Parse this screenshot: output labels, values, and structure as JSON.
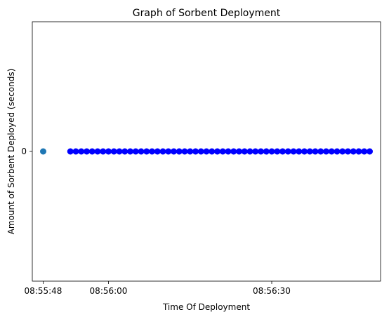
{
  "chart_data": {
    "type": "scatter",
    "title": "Graph of Sorbent Deployment",
    "xlabel": "Time Of Deployment",
    "ylabel": "Amount of Sorbent Deployed (seconds)",
    "x_axis_kind": "time",
    "xlim": [
      "08:55:46",
      "08:56:50"
    ],
    "ylim": [
      -0.055,
      0.055
    ],
    "x_ticks": [
      "08:55:48",
      "08:56:00",
      "08:56:30"
    ],
    "y_ticks": [
      0
    ],
    "y_tick_labels": [
      "0"
    ],
    "grid": false,
    "series": [
      {
        "color": "#1f77b4",
        "points": [
          {
            "x": "08:55:48",
            "y": 0
          }
        ]
      },
      {
        "color": "#0000ff",
        "points": [
          {
            "x": "08:55:53",
            "y": 0
          },
          {
            "x": "08:55:54",
            "y": 0
          },
          {
            "x": "08:55:55",
            "y": 0
          },
          {
            "x": "08:55:56",
            "y": 0
          },
          {
            "x": "08:55:57",
            "y": 0
          },
          {
            "x": "08:55:58",
            "y": 0
          },
          {
            "x": "08:55:59",
            "y": 0
          },
          {
            "x": "08:56:00",
            "y": 0
          },
          {
            "x": "08:56:01",
            "y": 0
          },
          {
            "x": "08:56:02",
            "y": 0
          },
          {
            "x": "08:56:03",
            "y": 0
          },
          {
            "x": "08:56:04",
            "y": 0
          },
          {
            "x": "08:56:05",
            "y": 0
          },
          {
            "x": "08:56:06",
            "y": 0
          },
          {
            "x": "08:56:07",
            "y": 0
          },
          {
            "x": "08:56:08",
            "y": 0
          },
          {
            "x": "08:56:09",
            "y": 0
          },
          {
            "x": "08:56:10",
            "y": 0
          },
          {
            "x": "08:56:11",
            "y": 0
          },
          {
            "x": "08:56:12",
            "y": 0
          },
          {
            "x": "08:56:13",
            "y": 0
          },
          {
            "x": "08:56:14",
            "y": 0
          },
          {
            "x": "08:56:15",
            "y": 0
          },
          {
            "x": "08:56:16",
            "y": 0
          },
          {
            "x": "08:56:17",
            "y": 0
          },
          {
            "x": "08:56:18",
            "y": 0
          },
          {
            "x": "08:56:19",
            "y": 0
          },
          {
            "x": "08:56:20",
            "y": 0
          },
          {
            "x": "08:56:21",
            "y": 0
          },
          {
            "x": "08:56:22",
            "y": 0
          },
          {
            "x": "08:56:23",
            "y": 0
          },
          {
            "x": "08:56:24",
            "y": 0
          },
          {
            "x": "08:56:25",
            "y": 0
          },
          {
            "x": "08:56:26",
            "y": 0
          },
          {
            "x": "08:56:27",
            "y": 0
          },
          {
            "x": "08:56:28",
            "y": 0
          },
          {
            "x": "08:56:29",
            "y": 0
          },
          {
            "x": "08:56:30",
            "y": 0
          },
          {
            "x": "08:56:31",
            "y": 0
          },
          {
            "x": "08:56:32",
            "y": 0
          },
          {
            "x": "08:56:33",
            "y": 0
          },
          {
            "x": "08:56:34",
            "y": 0
          },
          {
            "x": "08:56:35",
            "y": 0
          },
          {
            "x": "08:56:36",
            "y": 0
          },
          {
            "x": "08:56:37",
            "y": 0
          },
          {
            "x": "08:56:38",
            "y": 0
          },
          {
            "x": "08:56:39",
            "y": 0
          },
          {
            "x": "08:56:40",
            "y": 0
          },
          {
            "x": "08:56:41",
            "y": 0
          },
          {
            "x": "08:56:42",
            "y": 0
          },
          {
            "x": "08:56:43",
            "y": 0
          },
          {
            "x": "08:56:44",
            "y": 0
          },
          {
            "x": "08:56:45",
            "y": 0
          },
          {
            "x": "08:56:46",
            "y": 0
          },
          {
            "x": "08:56:47",
            "y": 0
          },
          {
            "x": "08:56:48",
            "y": 0
          }
        ]
      }
    ]
  }
}
